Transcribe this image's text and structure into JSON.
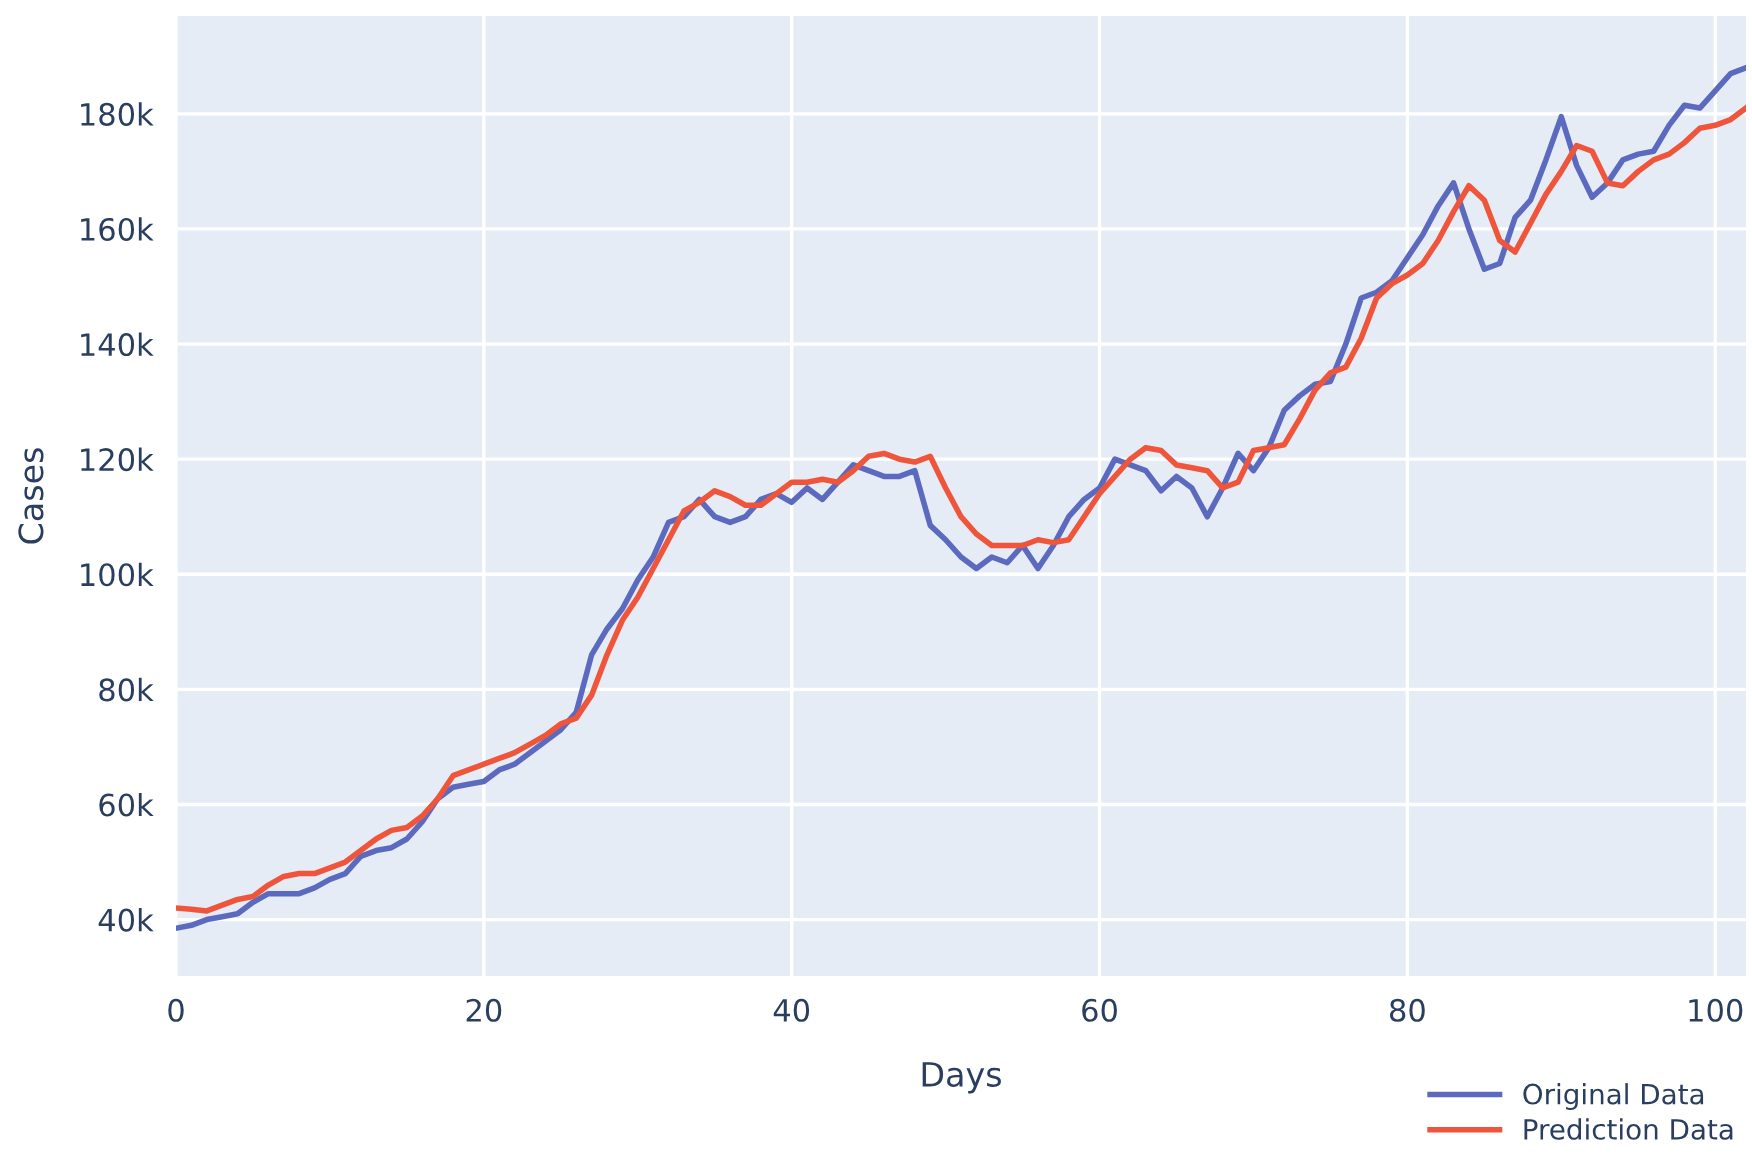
{
  "chart_data": {
    "type": "line",
    "xlabel": "Days",
    "ylabel": "Cases",
    "xlim": [
      0,
      102
    ],
    "xticks": [
      0,
      20,
      40,
      60,
      80,
      100
    ],
    "ylim": [
      30200,
      197000
    ],
    "yticks": [
      {
        "value": 40000,
        "label": "40k"
      },
      {
        "value": 60000,
        "label": "60k"
      },
      {
        "value": 80000,
        "label": "80k"
      },
      {
        "value": 100000,
        "label": "100k"
      },
      {
        "value": 120000,
        "label": "120k"
      },
      {
        "value": 140000,
        "label": "140k"
      },
      {
        "value": 160000,
        "label": "160k"
      },
      {
        "value": 180000,
        "label": "180k"
      }
    ],
    "grid": true,
    "legend": "bottom right",
    "line_style": "solid",
    "marker": "none",
    "x": [
      0,
      1,
      2,
      3,
      4,
      5,
      6,
      7,
      8,
      9,
      10,
      11,
      12,
      13,
      14,
      15,
      16,
      17,
      18,
      19,
      20,
      21,
      22,
      23,
      24,
      25,
      26,
      27,
      28,
      29,
      30,
      31,
      32,
      33,
      34,
      35,
      36,
      37,
      38,
      39,
      40,
      41,
      42,
      43,
      44,
      45,
      46,
      47,
      48,
      49,
      50,
      51,
      52,
      53,
      54,
      55,
      56,
      57,
      58,
      59,
      60,
      61,
      62,
      63,
      64,
      65,
      66,
      67,
      68,
      69,
      70,
      71,
      72,
      73,
      74,
      75,
      76,
      77,
      78,
      79,
      80,
      81,
      82,
      83,
      84,
      85,
      86,
      87,
      88,
      89,
      90,
      91,
      92,
      93,
      94,
      95,
      96,
      97,
      98,
      99,
      100,
      101,
      102
    ],
    "series": [
      {
        "name": "Original Data",
        "color": "#5b6abf",
        "values": [
          38500,
          39000,
          40000,
          40500,
          41000,
          43000,
          44500,
          44500,
          44500,
          45500,
          47000,
          48000,
          51000,
          52000,
          52500,
          54000,
          57000,
          61000,
          63000,
          63500,
          64000,
          66000,
          67000,
          69000,
          71000,
          73000,
          76000,
          86000,
          90500,
          94000,
          99000,
          103000,
          109000,
          110000,
          113000,
          110000,
          109000,
          110000,
          113000,
          114000,
          112500,
          115000,
          113000,
          116000,
          119000,
          118000,
          117000,
          117000,
          118000,
          108500,
          106000,
          103000,
          101000,
          103000,
          102000,
          105000,
          101000,
          105000,
          110000,
          113000,
          115000,
          120000,
          119000,
          118000,
          114500,
          117000,
          115000,
          110000,
          115000,
          121000,
          118000,
          122000,
          128500,
          131000,
          133000,
          133500,
          140000,
          148000,
          149000,
          151000,
          155000,
          159000,
          164000,
          168000,
          160000,
          153000,
          154000,
          162000,
          165000,
          172000,
          179500,
          171000,
          165500,
          168000,
          172000,
          173000,
          173500,
          178000,
          181500,
          181000,
          184000,
          187000,
          188000
        ]
      },
      {
        "name": "Prediction Data",
        "color": "#ef553b",
        "values": [
          42000,
          41800,
          41500,
          42500,
          43500,
          44000,
          46000,
          47500,
          48000,
          48000,
          49000,
          50000,
          52000,
          54000,
          55500,
          56000,
          58000,
          61000,
          65000,
          66000,
          67000,
          68000,
          69000,
          70500,
          72000,
          74000,
          75000,
          79000,
          86000,
          92000,
          96000,
          101000,
          106000,
          111000,
          112500,
          114500,
          113500,
          112000,
          112000,
          114000,
          116000,
          116000,
          116500,
          116000,
          118000,
          120500,
          121000,
          120000,
          119500,
          120500,
          115000,
          110000,
          107000,
          105000,
          105000,
          105000,
          106000,
          105500,
          106000,
          110000,
          114000,
          117000,
          120000,
          122000,
          121500,
          119000,
          118500,
          118000,
          115000,
          116000,
          121500,
          122000,
          122500,
          127000,
          132000,
          135000,
          136000,
          141000,
          148000,
          150500,
          152000,
          154000,
          158000,
          163000,
          167500,
          165000,
          158000,
          156000,
          161000,
          166000,
          170000,
          174500,
          173500,
          168000,
          167500,
          170000,
          172000,
          173000,
          175000,
          177500,
          178000,
          179000,
          181000
        ]
      }
    ]
  }
}
